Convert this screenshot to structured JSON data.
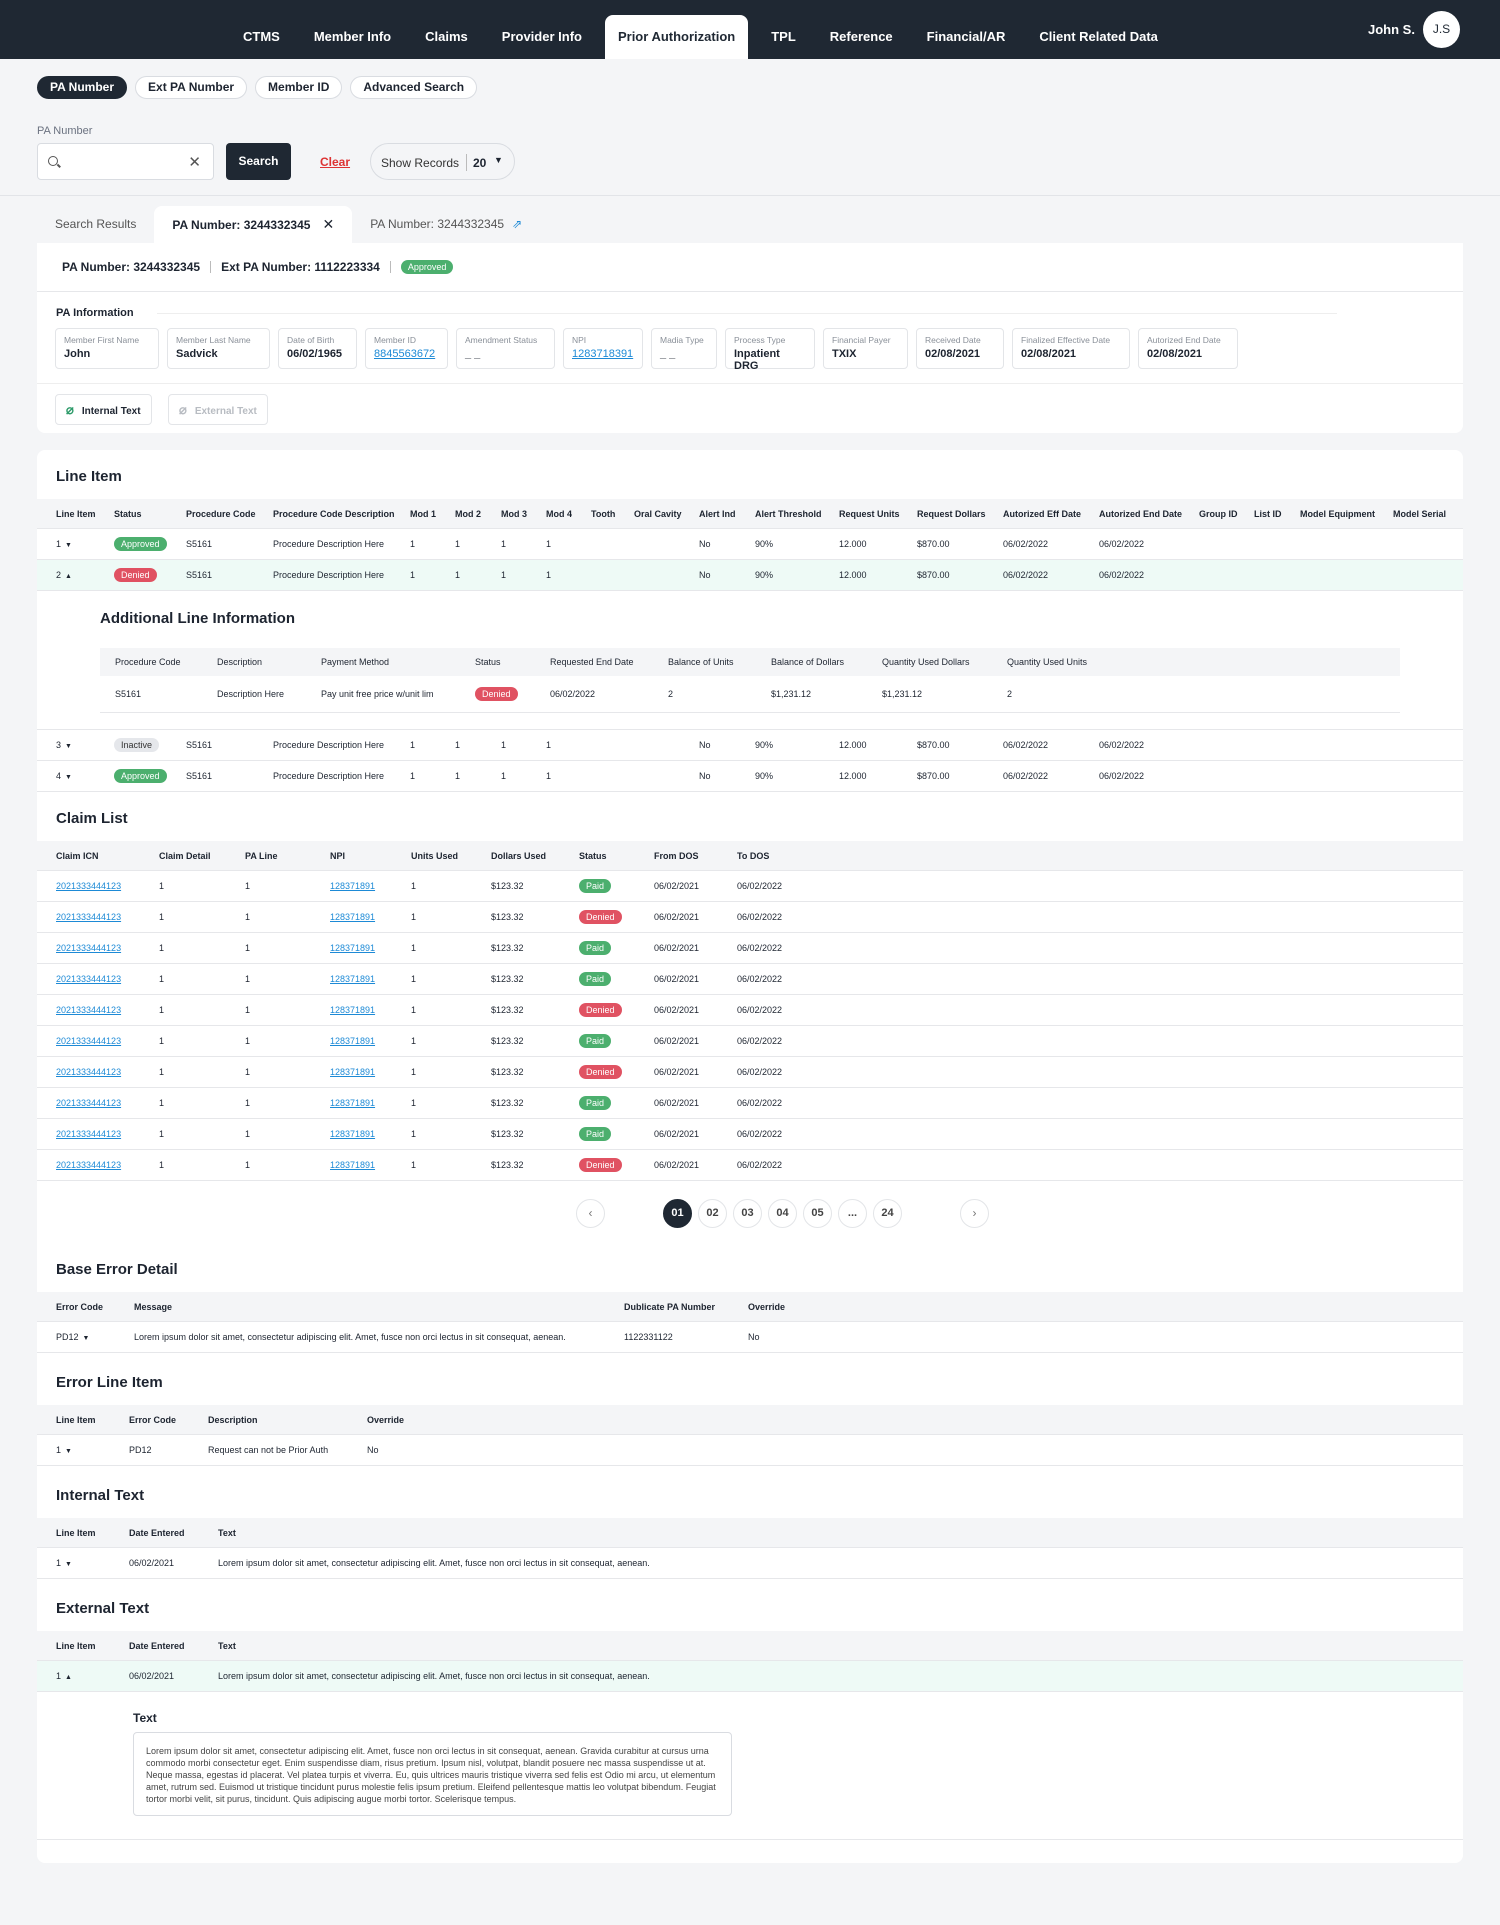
{
  "nav": {
    "items": [
      "CTMS",
      "Member Info",
      "Claims",
      "Provider Info",
      "Prior Authorization",
      "TPL",
      "Reference",
      "Financial/AR",
      "Client Related Data"
    ],
    "user_name": "John S.",
    "avatar_initials": "J.S"
  },
  "search": {
    "pills": [
      "PA Number",
      "Ext PA Number",
      "Member ID",
      "Advanced Search"
    ],
    "field_label": "PA Number",
    "value": "",
    "search_label": "Search",
    "clear_label": "Clear",
    "show_records_label": "Show Records",
    "show_records_value": "20"
  },
  "result_tabs": [
    "Search Results",
    "PA Number: 3244332345",
    "PA Number:",
    "3244332345"
  ],
  "pa": {
    "pa_number": "PA Number: 3244332345",
    "ext_pa_number": "Ext PA Number: 1112223334",
    "status": "Approved",
    "info_title": "PA Information",
    "fields": [
      {
        "label": "Member First Name",
        "value": "John"
      },
      {
        "label": "Member Last Name",
        "value": "Sadvick"
      },
      {
        "label": "Date of Birth",
        "value": "06/02/1965"
      },
      {
        "label": "Member ID",
        "value": "8845563672"
      },
      {
        "label": "Amendment Status",
        "value": "_ _"
      },
      {
        "label": "NPI",
        "value": "1283718391"
      },
      {
        "label": "Madia Type",
        "value": "_ _"
      },
      {
        "label": "Process Type",
        "value": "Inpatient DRG"
      },
      {
        "label": "Financial Payer",
        "value": "TXIX"
      },
      {
        "label": "Received Date",
        "value": "02/08/2021"
      },
      {
        "label": "Finalized Effective Date",
        "value": "02/08/2021"
      },
      {
        "label": "Autorized End Date",
        "value": "02/08/2021"
      }
    ],
    "internal_text_btn": "Internal Text",
    "external_text_btn": "External Text"
  },
  "line_item": {
    "title": "Line Item",
    "headers": [
      "Line Item",
      "Status",
      "Procedure Code",
      "Procedure Code Description",
      "Mod 1",
      "Mod 2",
      "Mod 3",
      "Mod 4",
      "Tooth",
      "Oral Cavity",
      "Alert Ind",
      "Alert Threshold",
      "Request Units",
      "Request Dollars",
      "Autorized Eff Date",
      "Autorized End Date",
      "Group ID",
      "List ID",
      "Model Equipment",
      "Model Serial"
    ],
    "rows": [
      {
        "line": "1",
        "status": "Approved",
        "code": "S5161",
        "desc": "Procedure Description Here",
        "m1": "1",
        "m2": "1",
        "m3": "1",
        "m4": "1",
        "alert": "No",
        "thr": "90%",
        "units": "12.000",
        "dollars": "$870.00",
        "eff": "06/02/2022",
        "end": "06/02/2022"
      },
      {
        "line": "2",
        "status": "Denied",
        "code": "S5161",
        "desc": "Procedure Description Here",
        "m1": "1",
        "m2": "1",
        "m3": "1",
        "m4": "1",
        "alert": "No",
        "thr": "90%",
        "units": "12.000",
        "dollars": "$870.00",
        "eff": "06/02/2022",
        "end": "06/02/2022"
      },
      {
        "line": "3",
        "status": "Inactive",
        "code": "S5161",
        "desc": "Procedure Description Here",
        "m1": "1",
        "m2": "1",
        "m3": "1",
        "m4": "1",
        "alert": "No",
        "thr": "90%",
        "units": "12.000",
        "dollars": "$870.00",
        "eff": "06/02/2022",
        "end": "06/02/2022"
      },
      {
        "line": "4",
        "status": "Approved",
        "code": "S5161",
        "desc": "Procedure Description Here",
        "m1": "1",
        "m2": "1",
        "m3": "1",
        "m4": "1",
        "alert": "No",
        "thr": "90%",
        "units": "12.000",
        "dollars": "$870.00",
        "eff": "06/02/2022",
        "end": "06/02/2022"
      }
    ],
    "additional": {
      "title": "Additional Line Information",
      "headers": [
        "Procedure Code",
        "Description",
        "Payment Method",
        "Status",
        "Requested End Date",
        "Balance of Units",
        "Balance of Dollars",
        "Quantity Used Dollars",
        "Quantity Used Units"
      ],
      "row": [
        "S5161",
        "Description Here",
        "Pay unit free price w/unit lim",
        "Denied",
        "06/02/2022",
        "2",
        "$1,231.12",
        "$1,231.12",
        "2"
      ]
    }
  },
  "claim_list": {
    "title": "Claim List",
    "headers": [
      "Claim ICN",
      "Claim Detail",
      "PA Line",
      "NPI",
      "Units Used",
      "Dollars Used",
      "Status",
      "From DOS",
      "To DOS"
    ],
    "rows": [
      {
        "icn": "2021333444123",
        "detail": "1",
        "line": "1",
        "npi": "128371891",
        "units": "1",
        "dollars": "$123.32",
        "status": "Paid",
        "from": "06/02/2021",
        "to": "06/02/2022"
      },
      {
        "icn": "2021333444123",
        "detail": "1",
        "line": "1",
        "npi": "128371891",
        "units": "1",
        "dollars": "$123.32",
        "status": "Denied",
        "from": "06/02/2021",
        "to": "06/02/2022"
      },
      {
        "icn": "2021333444123",
        "detail": "1",
        "line": "1",
        "npi": "128371891",
        "units": "1",
        "dollars": "$123.32",
        "status": "Paid",
        "from": "06/02/2021",
        "to": "06/02/2022"
      },
      {
        "icn": "2021333444123",
        "detail": "1",
        "line": "1",
        "npi": "128371891",
        "units": "1",
        "dollars": "$123.32",
        "status": "Paid",
        "from": "06/02/2021",
        "to": "06/02/2022"
      },
      {
        "icn": "2021333444123",
        "detail": "1",
        "line": "1",
        "npi": "128371891",
        "units": "1",
        "dollars": "$123.32",
        "status": "Denied",
        "from": "06/02/2021",
        "to": "06/02/2022"
      },
      {
        "icn": "2021333444123",
        "detail": "1",
        "line": "1",
        "npi": "128371891",
        "units": "1",
        "dollars": "$123.32",
        "status": "Paid",
        "from": "06/02/2021",
        "to": "06/02/2022"
      },
      {
        "icn": "2021333444123",
        "detail": "1",
        "line": "1",
        "npi": "128371891",
        "units": "1",
        "dollars": "$123.32",
        "status": "Denied",
        "from": "06/02/2021",
        "to": "06/02/2022"
      },
      {
        "icn": "2021333444123",
        "detail": "1",
        "line": "1",
        "npi": "128371891",
        "units": "1",
        "dollars": "$123.32",
        "status": "Paid",
        "from": "06/02/2021",
        "to": "06/02/2022"
      },
      {
        "icn": "2021333444123",
        "detail": "1",
        "line": "1",
        "npi": "128371891",
        "units": "1",
        "dollars": "$123.32",
        "status": "Paid",
        "from": "06/02/2021",
        "to": "06/02/2022"
      },
      {
        "icn": "2021333444123",
        "detail": "1",
        "line": "1",
        "npi": "128371891",
        "units": "1",
        "dollars": "$123.32",
        "status": "Denied",
        "from": "06/02/2021",
        "to": "06/02/2022"
      }
    ],
    "pages": [
      "01",
      "02",
      "03",
      "04",
      "05",
      "...",
      "24"
    ]
  },
  "base_error": {
    "title": "Base Error Detail",
    "headers": [
      "Error Code",
      "Message",
      "Dublicate PA Number",
      "Override"
    ],
    "row": [
      "PD12",
      "Lorem ipsum dolor sit amet, consectetur adipiscing elit. Amet, fusce non orci lectus in sit consequat, aenean.",
      "1122331122",
      "No"
    ]
  },
  "error_line": {
    "title": "Error Line Item",
    "headers": [
      "Line Item",
      "Error Code",
      "Description",
      "Override"
    ],
    "row": [
      "1",
      "PD12",
      "Request can not be Prior Auth",
      "No"
    ]
  },
  "internal_text": {
    "title": "Internal Text",
    "headers": [
      "Line Item",
      "Date Entered",
      "Text"
    ],
    "row": [
      "1",
      "06/02/2021",
      "Lorem ipsum dolor sit amet, consectetur adipiscing elit. Amet, fusce non orci lectus in sit consequat, aenean."
    ]
  },
  "external_text": {
    "title": "External Text",
    "headers": [
      "Line Item",
      "Date Entered",
      "Text"
    ],
    "row": [
      "1",
      "06/02/2021",
      "Lorem ipsum dolor sit amet, consectetur adipiscing elit. Amet, fusce non orci lectus in sit consequat, aenean."
    ],
    "text_title": "Text",
    "text_body": "Lorem ipsum dolor sit amet, consectetur adipiscing elit. Amet, fusce non orci lectus in sit consequat, aenean. Gravida curabitur at cursus urna commodo morbi consectetur eget. Enim suspendisse diam, risus pretium. Ipsum nisl, volutpat, blandit posuere nec massa suspendisse ut at. Neque massa, egestas id placerat. Vel platea turpis et viverra. Eu, quis ultrices mauris tristique viverra sed felis est Odio mi arcu, ut elementum amet, rutrum sed. Euismod ut tristique tincidunt purus molestie felis ipsum pretium. Eleifend pellentesque mattis leo volutpat bibendum. Feugiat tortor morbi velit, sit purus, tincidunt. Quis adipiscing augue morbi tortor. Scelerisque tempus."
  },
  "colors": {
    "nav_bg": "#1f2833",
    "approved": "#4caf6e",
    "denied": "#e05262",
    "link": "#1d8ad6"
  }
}
